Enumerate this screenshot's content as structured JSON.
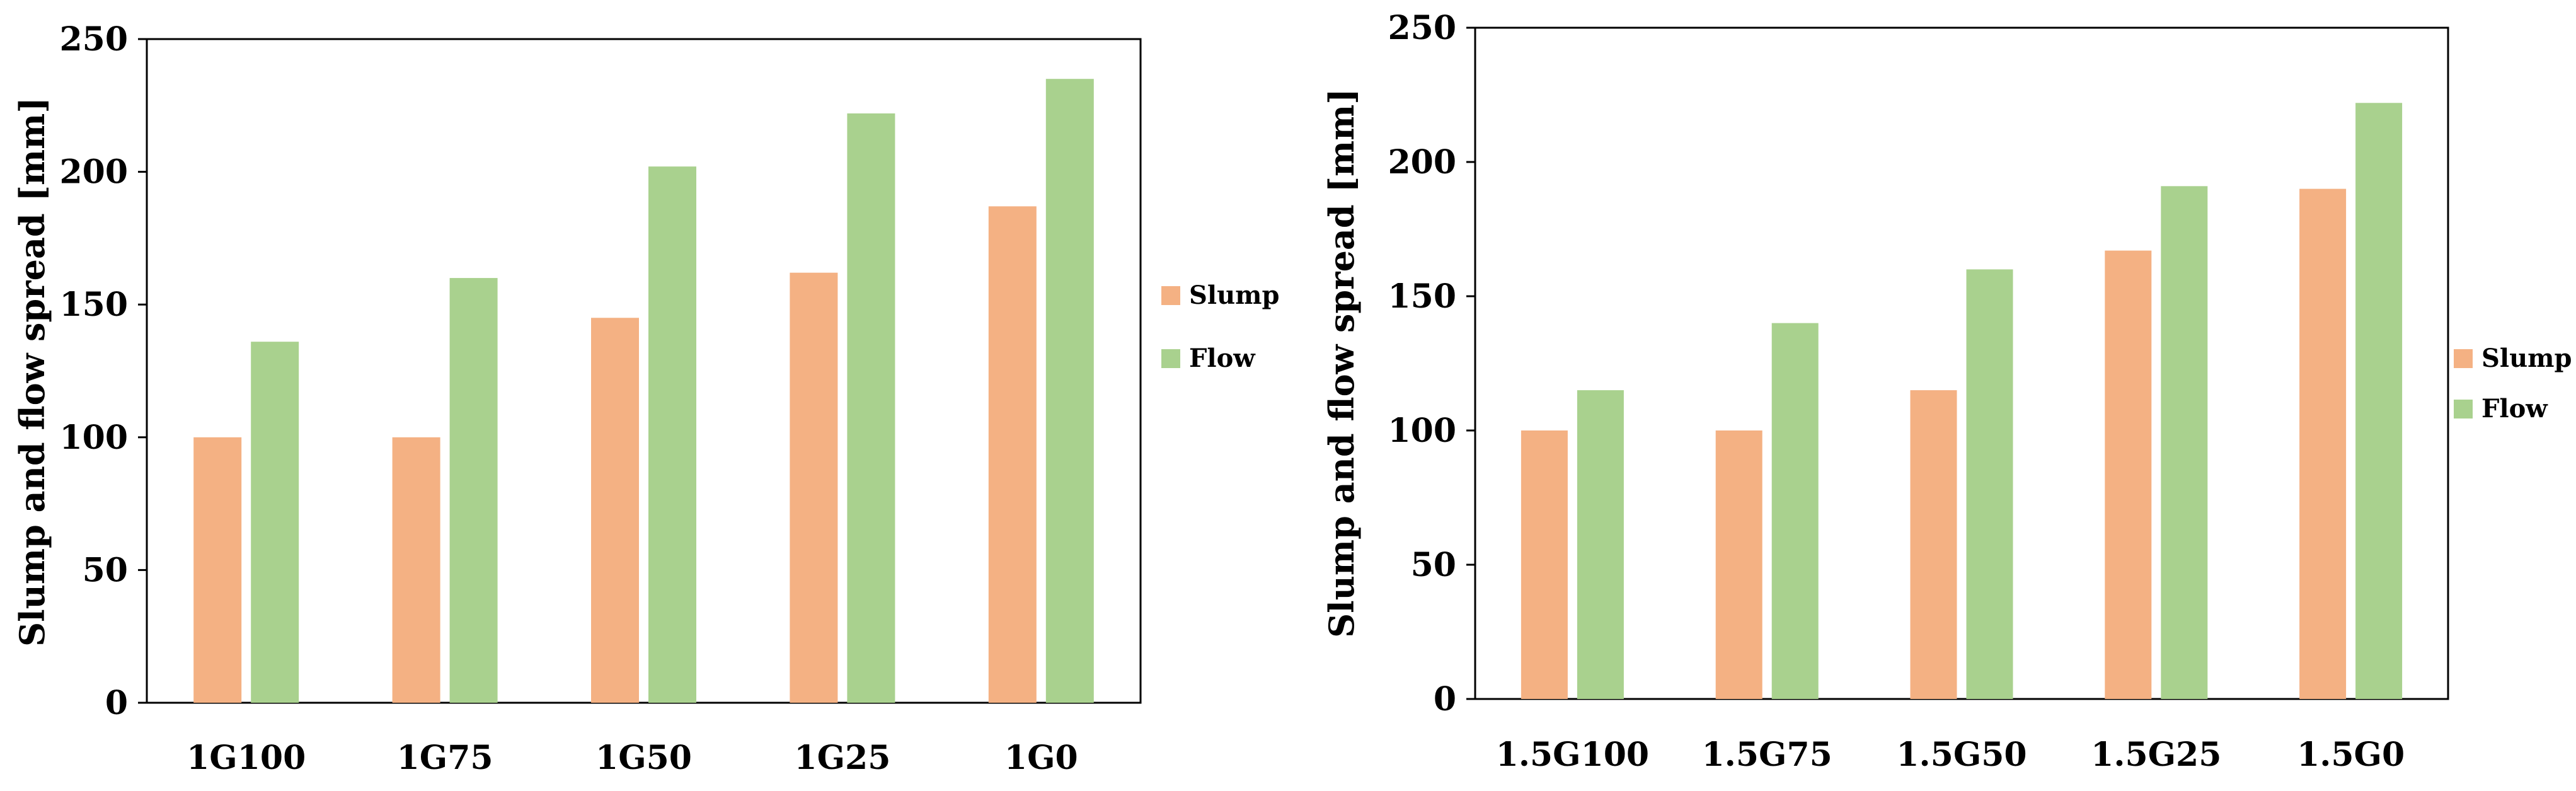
{
  "chart_data": [
    {
      "type": "bar",
      "title": "",
      "xlabel": "",
      "ylabel": "Slump and flow spread [mm]",
      "ylim": [
        0,
        250
      ],
      "yticks": [
        0,
        50,
        100,
        150,
        200,
        250
      ],
      "grid": false,
      "legend_position": "right",
      "categories": [
        "1G100",
        "1G75",
        "1G50",
        "1G25",
        "1G0"
      ],
      "series": [
        {
          "name": "Slump",
          "color": "#F4B183",
          "values": [
            100,
            100,
            145,
            162,
            187
          ]
        },
        {
          "name": "Flow",
          "color": "#A9D18E",
          "values": [
            136,
            160,
            202,
            222,
            235
          ]
        }
      ]
    },
    {
      "type": "bar",
      "title": "",
      "xlabel": "",
      "ylabel": "Slump and flow spread [mm]",
      "ylim": [
        0,
        250
      ],
      "yticks": [
        0,
        50,
        100,
        150,
        200,
        250
      ],
      "grid": false,
      "legend_position": "right",
      "categories": [
        "1.5G100",
        "1.5G75",
        "1.5G50",
        "1.5G25",
        "1.5G0"
      ],
      "series": [
        {
          "name": "Slump",
          "color": "#F4B183",
          "values": [
            100,
            100,
            115,
            167,
            190
          ]
        },
        {
          "name": "Flow",
          "color": "#A9D18E",
          "values": [
            115,
            140,
            160,
            191,
            222
          ]
        }
      ]
    }
  ]
}
